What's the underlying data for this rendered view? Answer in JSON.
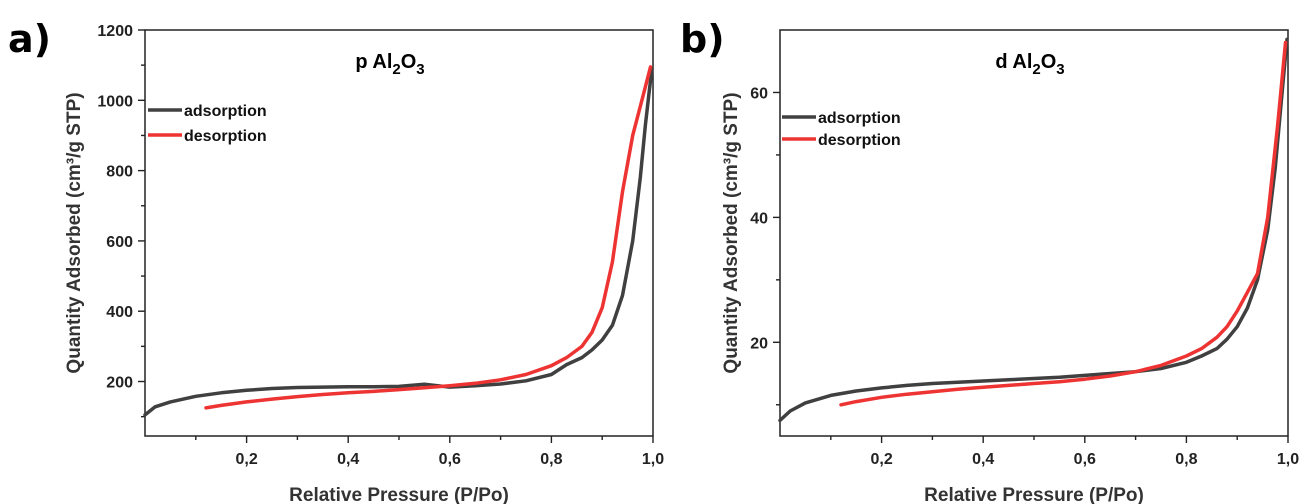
{
  "chart_data": [
    {
      "panel_label": "a)",
      "type": "line",
      "title": "p Al2O3",
      "title_parts": {
        "prefix": "p Al",
        "sub1": "2",
        "mid": "O",
        "sub2": "3"
      },
      "xlabel": "Relative Pressure (P/Po)",
      "ylabel": "Quantity Adsorbed (cm³/g STP)",
      "xlim": [
        0.0,
        1.0
      ],
      "ylim": [
        45,
        1200
      ],
      "xticks": [
        0.2,
        0.4,
        0.6,
        0.8,
        1.0
      ],
      "xtick_labels": [
        "0,2",
        "0,4",
        "0,6",
        "0,8",
        "1,0"
      ],
      "yticks": [
        200,
        400,
        600,
        800,
        1000,
        1200
      ],
      "ytick_labels": [
        "200",
        "400",
        "600",
        "800",
        "1000",
        "1200"
      ],
      "legend_position": "upper-left",
      "series": [
        {
          "name": "adsorption",
          "color": "#404040",
          "x": [
            0.0,
            0.02,
            0.05,
            0.1,
            0.15,
            0.2,
            0.25,
            0.3,
            0.35,
            0.4,
            0.45,
            0.5,
            0.55,
            0.6,
            0.65,
            0.7,
            0.75,
            0.8,
            0.83,
            0.86,
            0.88,
            0.9,
            0.92,
            0.94,
            0.96,
            0.975,
            0.985,
            0.993,
            0.998
          ],
          "y": [
            105,
            128,
            142,
            158,
            168,
            175,
            180,
            183,
            184,
            185,
            185,
            186,
            192,
            184,
            188,
            193,
            202,
            220,
            248,
            268,
            290,
            318,
            360,
            445,
            600,
            780,
            930,
            1030,
            1090
          ]
        },
        {
          "name": "desorption",
          "color": "#ee3333",
          "x": [
            0.12,
            0.15,
            0.2,
            0.25,
            0.3,
            0.35,
            0.4,
            0.45,
            0.5,
            0.55,
            0.6,
            0.65,
            0.7,
            0.75,
            0.8,
            0.83,
            0.86,
            0.88,
            0.9,
            0.92,
            0.94,
            0.96,
            0.98,
            0.995
          ],
          "y": [
            125,
            132,
            142,
            150,
            157,
            163,
            168,
            172,
            177,
            182,
            188,
            195,
            205,
            220,
            245,
            268,
            300,
            340,
            410,
            540,
            740,
            900,
            1010,
            1095
          ]
        }
      ]
    },
    {
      "panel_label": "b)",
      "type": "line",
      "title": "d Al2O3",
      "title_parts": {
        "prefix": "d Al",
        "sub1": "2",
        "mid": "O",
        "sub2": "3"
      },
      "xlabel": "Relative Pressure (P/Po)",
      "ylabel": "Quantity Adsorbed (cm³/g STP)",
      "xlim": [
        0.0,
        1.0
      ],
      "ylim": [
        5,
        70
      ],
      "xticks": [
        0.2,
        0.4,
        0.6,
        0.8,
        1.0
      ],
      "xtick_labels": [
        "0,2",
        "0,4",
        "0,6",
        "0,8",
        "1,0"
      ],
      "yticks": [
        20,
        40,
        60
      ],
      "ytick_labels": [
        "20",
        "40",
        "60"
      ],
      "legend_position": "upper-left",
      "series": [
        {
          "name": "adsorption",
          "color": "#404040",
          "x": [
            0.0,
            0.02,
            0.05,
            0.1,
            0.15,
            0.2,
            0.25,
            0.3,
            0.35,
            0.4,
            0.45,
            0.5,
            0.55,
            0.6,
            0.65,
            0.7,
            0.75,
            0.8,
            0.83,
            0.86,
            0.88,
            0.9,
            0.92,
            0.94,
            0.96,
            0.975,
            0.985,
            0.993,
            0.998
          ],
          "y": [
            7.5,
            9.0,
            10.3,
            11.5,
            12.2,
            12.7,
            13.1,
            13.4,
            13.6,
            13.8,
            14.0,
            14.2,
            14.4,
            14.7,
            15.0,
            15.3,
            15.8,
            16.8,
            17.8,
            19.0,
            20.5,
            22.5,
            25.5,
            30.0,
            38.0,
            48.0,
            57.0,
            64.0,
            68.5
          ]
        },
        {
          "name": "desorption",
          "color": "#ee3333",
          "x": [
            0.12,
            0.15,
            0.2,
            0.25,
            0.3,
            0.35,
            0.4,
            0.45,
            0.5,
            0.55,
            0.6,
            0.65,
            0.7,
            0.75,
            0.8,
            0.83,
            0.86,
            0.88,
            0.9,
            0.92,
            0.94,
            0.96,
            0.98,
            0.995
          ],
          "y": [
            10.0,
            10.5,
            11.2,
            11.7,
            12.1,
            12.5,
            12.8,
            13.1,
            13.4,
            13.7,
            14.1,
            14.6,
            15.3,
            16.3,
            17.8,
            19.0,
            20.8,
            22.5,
            25.0,
            28.0,
            31.0,
            40.0,
            55.0,
            68.0
          ]
        }
      ]
    }
  ]
}
